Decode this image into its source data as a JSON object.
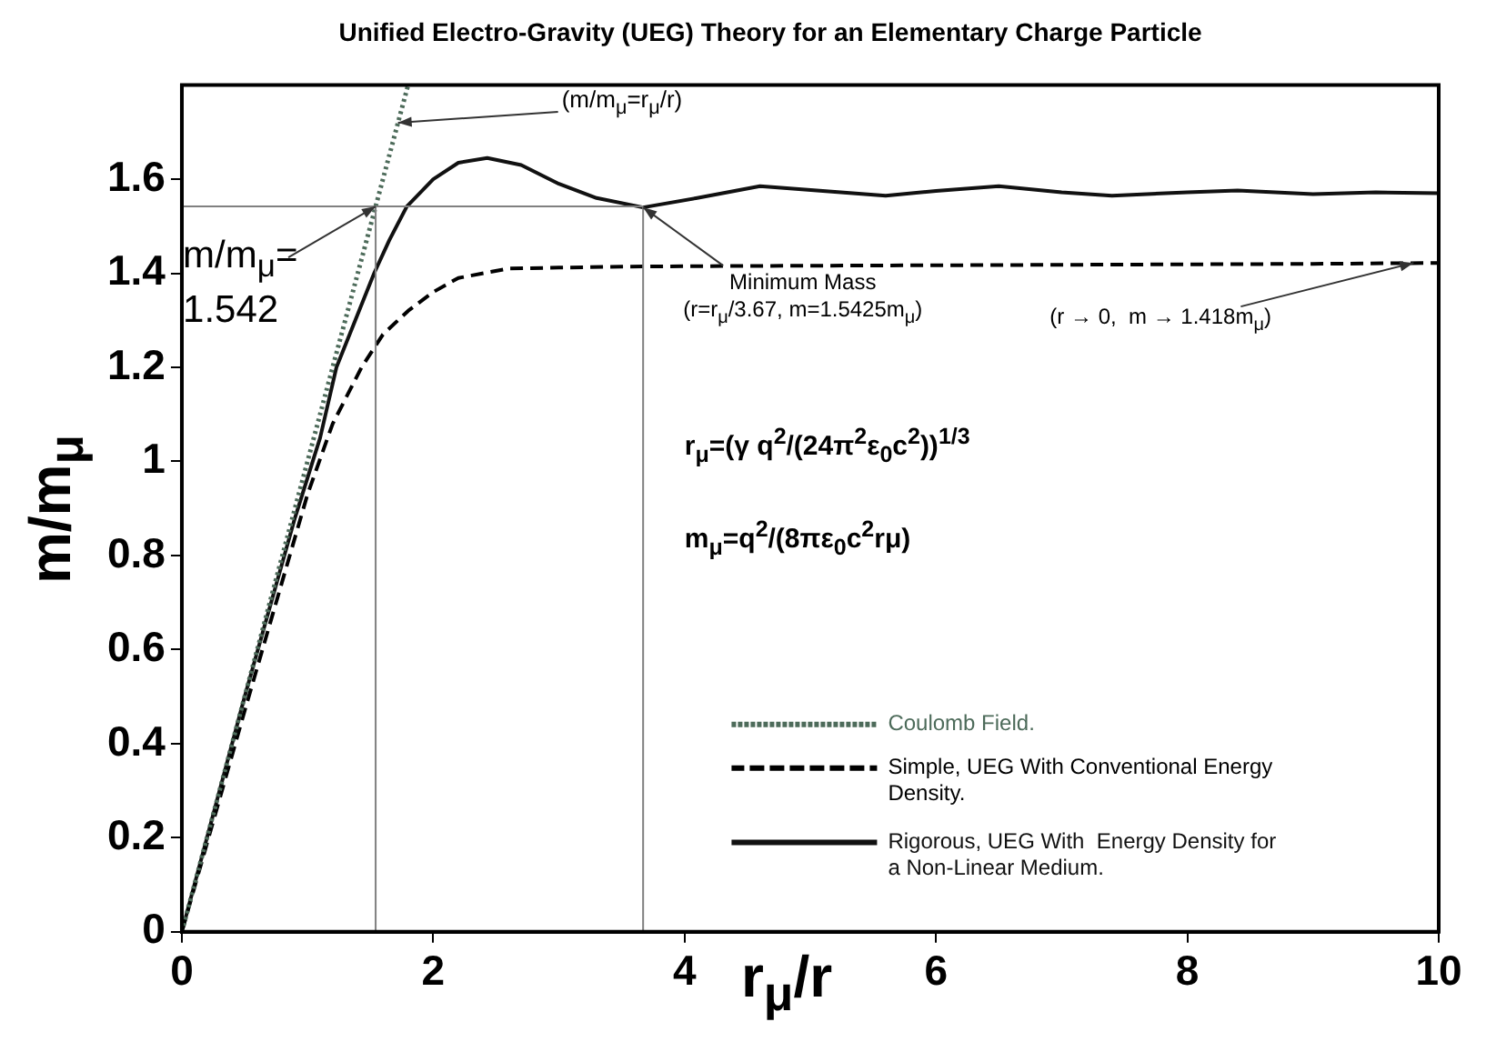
{
  "chart_data": {
    "type": "line",
    "title": "Unified Electro-Gravity (UEG) Theory for an Elementary Charge Particle",
    "xlabel": "r$_{μ}$/r",
    "ylabel": "m/m$_{μ}$",
    "xlim": [
      0,
      10
    ],
    "xticks": [
      0,
      2,
      4,
      6,
      8,
      10
    ],
    "ylim": [
      0,
      1.8
    ],
    "yticks": [
      0,
      0.2,
      0.4,
      0.6,
      0.8,
      1,
      1.2,
      1.4,
      1.6
    ],
    "grid": false,
    "legend": "bottom right",
    "series": [
      {
        "name": "Coulomb Field.",
        "color": "#4d6b5a",
        "line_style": "dotted",
        "x": [
          0,
          1.8
        ],
        "values": [
          0,
          1.8
        ]
      },
      {
        "name": "Simple, UEG With Conventional Energy Density.",
        "color": "#000000",
        "line_style": "dashed",
        "x": [
          0,
          0.5,
          1,
          1.2,
          1.43,
          1.6,
          1.8,
          2,
          2.2,
          2.4,
          2.6,
          3,
          3.5,
          4,
          5,
          6,
          7,
          8,
          9,
          10
        ],
        "values": [
          0,
          0.47,
          0.93,
          1.08,
          1.2,
          1.27,
          1.32,
          1.36,
          1.39,
          1.4,
          1.41,
          1.412,
          1.414,
          1.415,
          1.416,
          1.417,
          1.418,
          1.419,
          1.42,
          1.422
        ]
      },
      {
        "name": "Rigorous, UEG With  Energy Density for a Non-Linear Medium.",
        "color": "#111111",
        "line_style": "solid",
        "x": [
          0,
          0.5,
          0.9,
          1.1,
          1.23,
          1.38,
          1.53,
          1.65,
          1.79,
          2,
          2.2,
          2.43,
          2.7,
          3,
          3.3,
          3.67,
          4.1,
          4.6,
          5.1,
          5.6,
          6,
          6.5,
          7,
          7.4,
          8,
          8.4,
          9,
          9.5,
          10
        ],
        "values": [
          0,
          0.5,
          0.88,
          1.05,
          1.2,
          1.3,
          1.4,
          1.47,
          1.542,
          1.6,
          1.635,
          1.645,
          1.63,
          1.59,
          1.56,
          1.54,
          1.56,
          1.585,
          1.575,
          1.565,
          1.575,
          1.585,
          1.572,
          1.565,
          1.572,
          1.576,
          1.568,
          1.572,
          1.57
        ]
      }
    ],
    "ref_lines": [
      {
        "axis": "y",
        "value": 1.542,
        "color": "#808080"
      },
      {
        "axis": "x",
        "value": 1.542,
        "color": "#808080"
      },
      {
        "axis": "x",
        "value": 3.67,
        "color": "#808080"
      }
    ],
    "annotations": [
      {
        "text": "(m/m$_{μ}$=r$_{μ}$/r)",
        "x": 1.72,
        "y": 1.72
      },
      {
        "text": "m/m$_{μ}$=\n1.542",
        "x": 1.542,
        "y": 1.542
      },
      {
        "text": "Minimum Mass\n(r=r$_{μ}$/3.67, m=1.5425m$_{μ}$)",
        "x": 3.67,
        "y": 1.54
      },
      {
        "text": "(r → 0,  m → 1.418m$_{μ}$)",
        "x": 9.8,
        "y": 1.422
      },
      "r$_{μ}$=(γ q$^{2}$/(24π$^{2}$ε$_{0}$c$^{2}$))$^{1/3}$",
      "m$_{μ}$=q$^{2}$/(8πε$_{0}$c$^{2}$rμ)"
    ]
  }
}
